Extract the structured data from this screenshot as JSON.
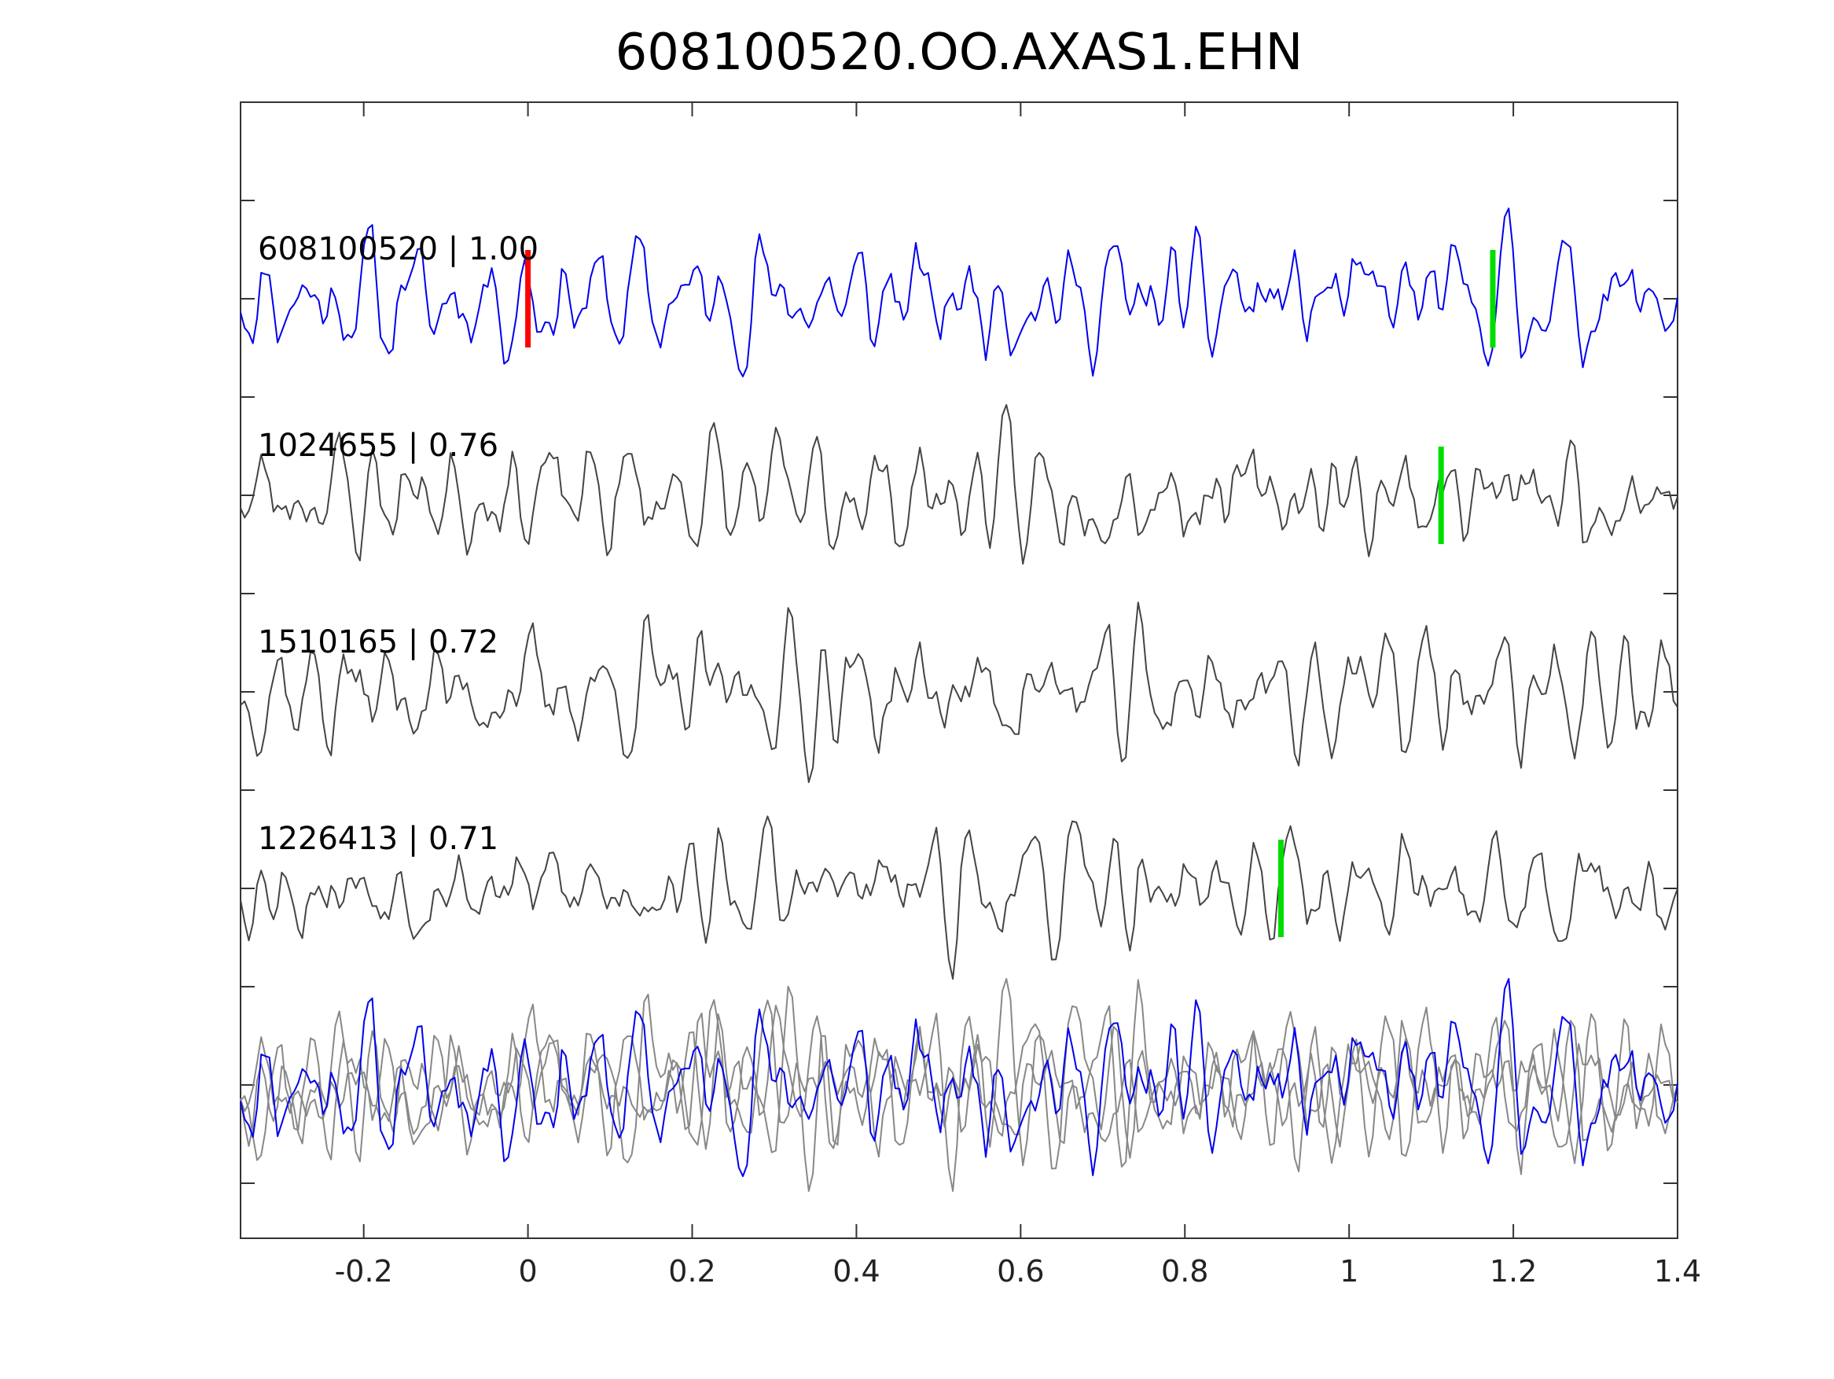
{
  "chart_data": {
    "type": "line",
    "title": "608100520.OO.AXAS1.EHN",
    "xlabel": "",
    "ylabel": "",
    "xlim": [
      -0.35,
      1.4
    ],
    "x_ticks": [
      -0.2,
      0,
      0.2,
      0.4,
      0.6,
      0.8,
      1,
      1.2,
      1.4
    ],
    "x_tick_labels": [
      "-0.2",
      "0",
      "0.2",
      "0.4",
      "0.6",
      "0.8",
      "1",
      "1.2",
      "1.4"
    ],
    "grid": false,
    "sample_count": 350,
    "traces": [
      {
        "label": "608100520 | 1.00",
        "color": "#0000ee",
        "seed": 11,
        "markers": [
          {
            "x": 0.0,
            "color": "#ff0000"
          },
          {
            "x": 1.175,
            "color": "#00dd00"
          }
        ]
      },
      {
        "label": "1024655 | 0.76",
        "color": "#444444",
        "seed": 23,
        "markers": [
          {
            "x": 1.112,
            "color": "#00dd00"
          }
        ]
      },
      {
        "label": "1510165 | 0.72",
        "color": "#444444",
        "seed": 37,
        "markers": []
      },
      {
        "label": "1226413 | 0.71",
        "color": "#444444",
        "seed": 53,
        "markers": [
          {
            "x": 0.917,
            "color": "#00dd00"
          }
        ]
      }
    ],
    "overlay": {
      "colors": [
        "#888888",
        "#888888",
        "#888888",
        "#0000ee"
      ]
    }
  }
}
